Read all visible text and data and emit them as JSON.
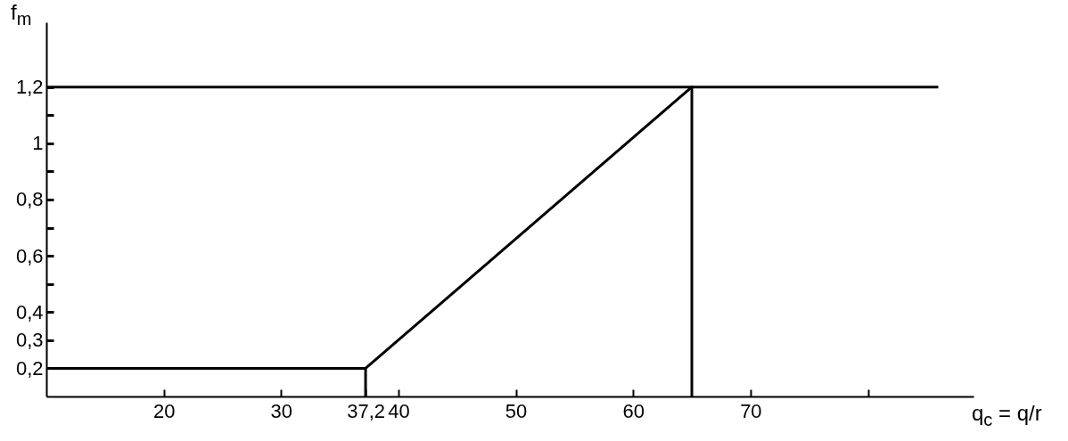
{
  "chart_data": {
    "type": "line",
    "xlabel": "q$_{c}$ = q/r",
    "ylabel": "f$_{m}$",
    "xlim": [
      10,
      89
    ],
    "ylim": [
      0.1,
      1.43
    ],
    "xticks": [
      20,
      30,
      {
        "value": 37.2,
        "label": "37,2"
      },
      40,
      50,
      60,
      70,
      {
        "value": 80,
        "label": null
      }
    ],
    "yticks": [
      {
        "value": 0.2,
        "label": "0,2"
      },
      {
        "value": 0.3,
        "label": "0,3"
      },
      {
        "value": 0.4,
        "label": "0,4"
      },
      {
        "value": 0.5,
        "label": null
      },
      {
        "value": 0.6,
        "label": "0,6"
      },
      {
        "value": 0.7,
        "label": null
      },
      {
        "value": 0.8,
        "label": "0,8"
      },
      {
        "value": 0.9,
        "label": null
      },
      1,
      {
        "value": 1.1,
        "label": null
      },
      {
        "value": 1.2,
        "label": "1,2"
      }
    ],
    "grid": false,
    "series": [
      {
        "color": "#000000",
        "x": [
          10,
          86
        ],
        "values": [
          1.2,
          1.2
        ]
      },
      {
        "color": "#000000",
        "x": [
          10,
          37.2,
          65,
          65
        ],
        "values": [
          0.2,
          0.2,
          1.2,
          0.1
        ]
      },
      {
        "color": "#000000",
        "x": [
          37.2,
          37.2
        ],
        "values": [
          0.1,
          0.2
        ]
      }
    ]
  }
}
